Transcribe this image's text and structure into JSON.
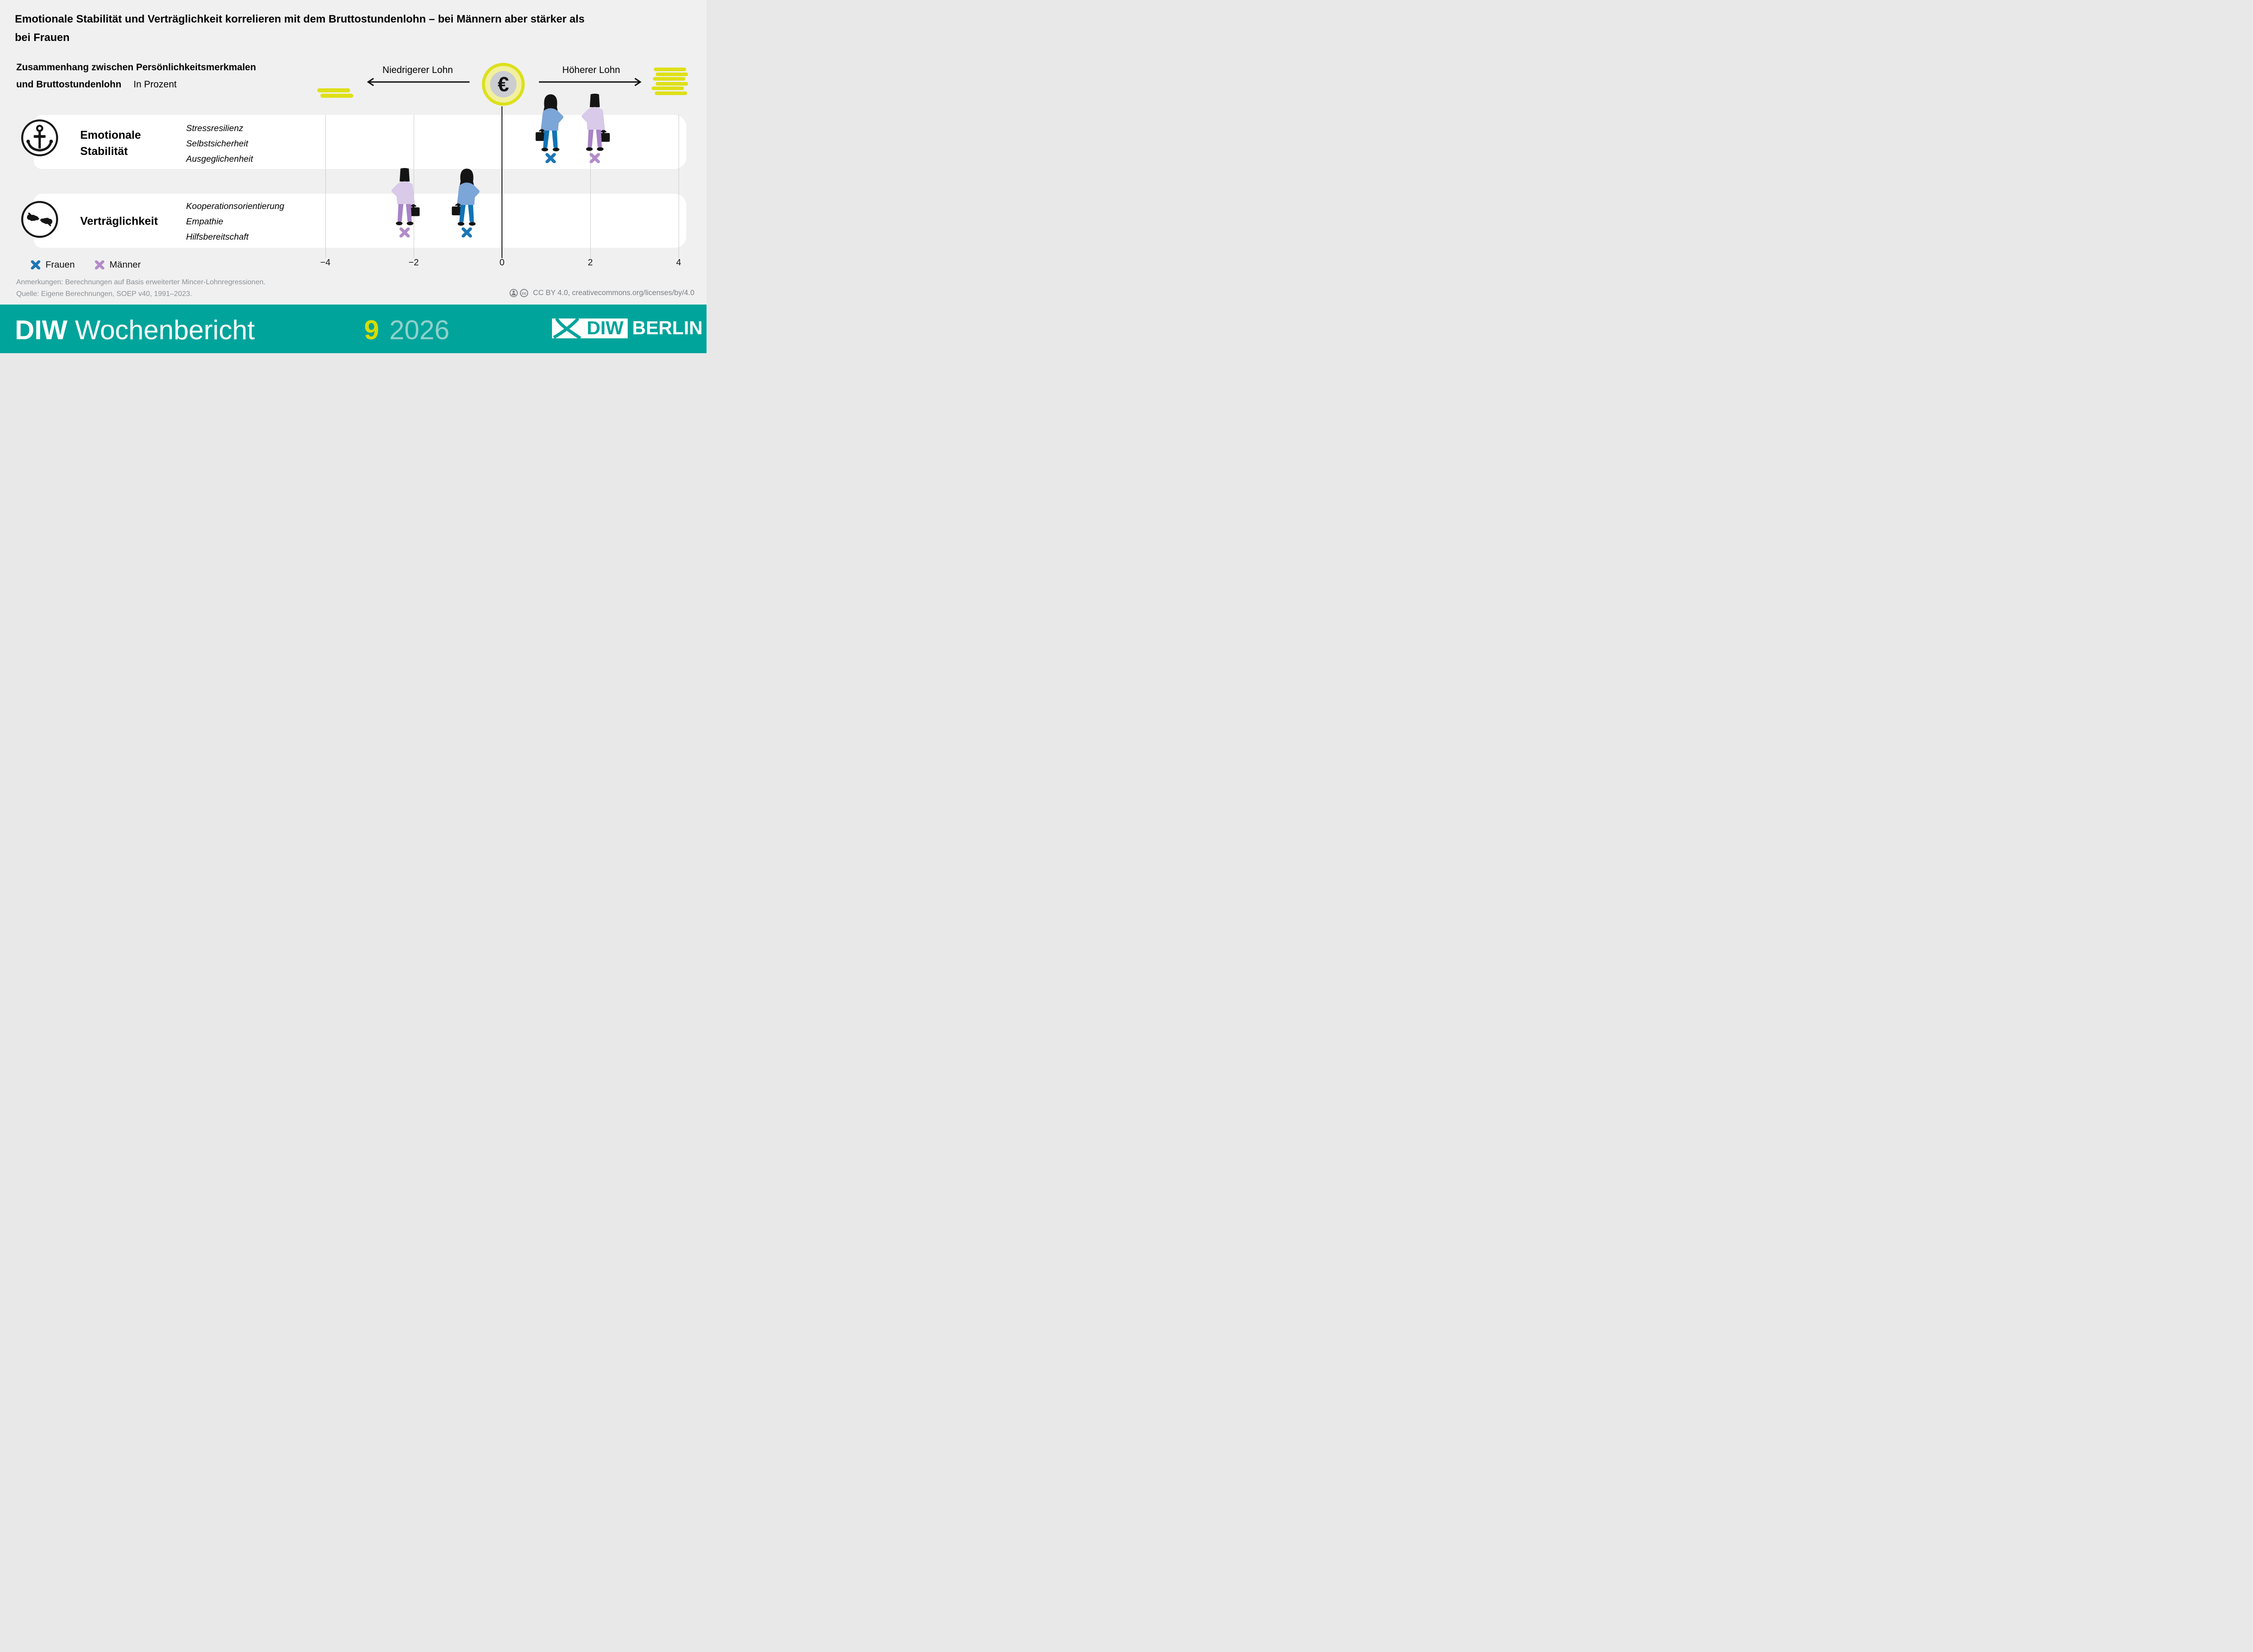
{
  "title": {
    "line1": "Emotionale Stabilität und Verträglichkeit korrelieren mit dem Bruttostundenlohn – bei Männern aber stärker als",
    "line2": "bei Frauen"
  },
  "subtitle": {
    "line1_bold": "Zusammenhang zwischen Persönlichkeitsmerkmalen",
    "line2_bold": "und Bruttostundenlohn",
    "unit_label": "In Prozent"
  },
  "flow_header": {
    "lower_label": "Niedrigerer Lohn",
    "higher_label": "Höherer Lohn",
    "euro_symbol": "€"
  },
  "rows": [
    {
      "id": "emotionale-stabilitaet",
      "name": "Emotionale Stabilität",
      "icon": "anchor",
      "traits": [
        "Stressresilienz",
        "Selbstsicherheit",
        "Ausgeglichenheit"
      ]
    },
    {
      "id": "vertraeglichkeit",
      "name": "Verträglichkeit",
      "icon": "hands",
      "traits": [
        "Kooperationsorientierung",
        "Empathie",
        "Hilfsbereitschaft"
      ]
    }
  ],
  "chart_data": {
    "type": "scatter",
    "title": "Zusammenhang zwischen Persönlichkeitsmerkmalen und Bruttostundenlohn",
    "unit": "In Prozent",
    "direction_labels": [
      "Niedrigerer Lohn",
      "Höherer Lohn"
    ],
    "categories": [
      "Emotionale Stabilität",
      "Verträglichkeit"
    ],
    "x_axis": {
      "min": -4,
      "max": 4,
      "tick_values": [
        -4,
        -2,
        0,
        2,
        4
      ],
      "tick_labels": [
        "−4",
        "−2",
        "0",
        "2",
        "4"
      ],
      "zero_line": true
    },
    "series": [
      {
        "name": "Frauen",
        "marker": "x",
        "color": "#1c75b5",
        "values": [
          1.1,
          -0.8
        ]
      },
      {
        "name": "Männer",
        "marker": "x",
        "color": "#b38cc7",
        "values": [
          2.1,
          -2.2
        ]
      }
    ]
  },
  "legend": {
    "items": [
      {
        "label": "Frauen",
        "color": "#1c75b5"
      },
      {
        "label": "Männer",
        "color": "#b38cc7"
      }
    ]
  },
  "notes": {
    "line1": "Anmerkungen: Berechnungen auf Basis erweiterter Mincer-Lohnregressionen.",
    "line2": "Quelle: Eigene Berechnungen, SOEP v40, 1991–2023."
  },
  "license": {
    "label": "CC BY 4.0, creativecommons.org/licenses/by/4.0"
  },
  "footer": {
    "brand_bold": "DIW",
    "brand_regular": "Wochenbericht",
    "issue_number": "9",
    "year": "2026",
    "logo_text": "DIW",
    "logo_suffix": "BERLIN"
  },
  "colors": {
    "background": "#f0f0f1",
    "card": "#ffffff",
    "frauen_blue": "#1c75b5",
    "maenner_purple": "#b38cc7",
    "frauen_shirt": "#7CA5D8",
    "frauen_pants": "#1173B5",
    "maenner_shirt": "#D8CAE8",
    "maenner_pants": "#A884C6",
    "accent_yellow": "#dee018",
    "coin_ring_yellow": "#dce01b",
    "coin_pale_yellow": "#f2f0a0",
    "coin_gray": "#cccdd1",
    "footer_teal": "#01a49b",
    "issue_yellow": "#d6dc00",
    "year_pale_teal": "#8fd1cb",
    "notes_gray": "#8d9192"
  }
}
